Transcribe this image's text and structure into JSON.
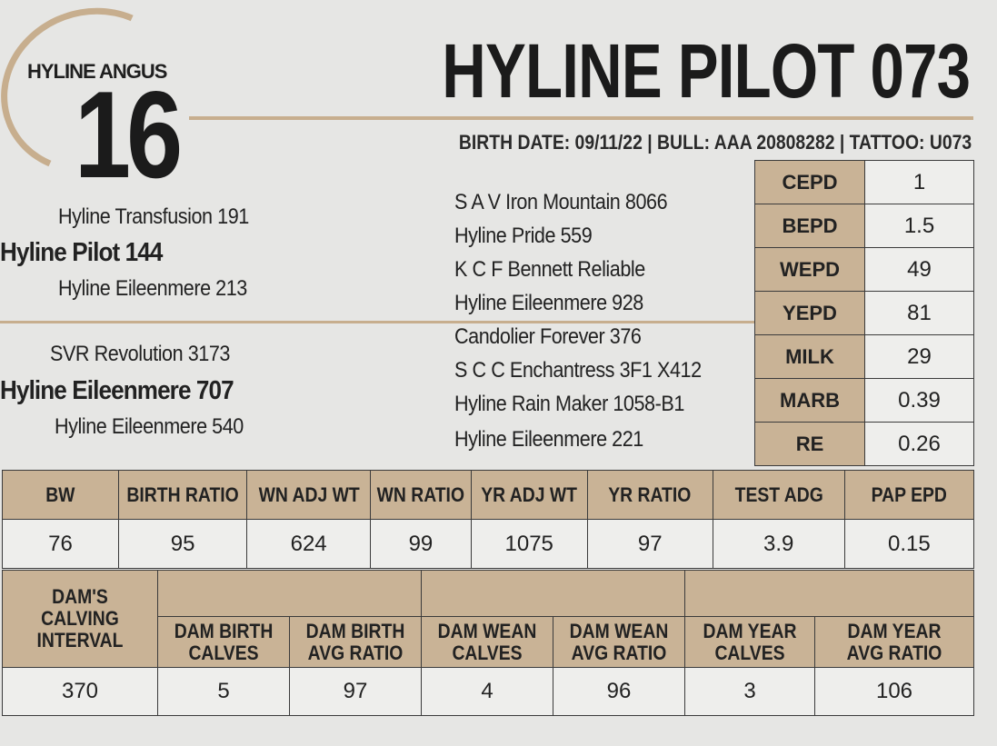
{
  "header": {
    "brand": "HYLINE ANGUS",
    "lot_number": "16",
    "title": "HYLINE PILOT 073",
    "info_line": "BIRTH DATE: 09/11/22 | BULL:  AAA 20808282 | TATTOO: U073"
  },
  "pedigree": {
    "sire_sire": "Hyline Transfusion 191",
    "sire": "Hyline Pilot 144",
    "sire_dam": "Hyline Eileenmere 213",
    "dam_sire": "SVR Revolution 3173",
    "dam": "Hyline Eileenmere 707",
    "dam_dam": "Hyline Eileenmere 540",
    "third_generation": [
      "S A V Iron Mountain 8066",
      "Hyline Pride 559",
      "K C F Bennett Reliable",
      "Hyline Eileenmere 928",
      "Candolier Forever 376",
      "S C C Enchantress 3F1 X412",
      "Hyline Rain Maker 1058-B1",
      "Hyline Eileenmere 221"
    ]
  },
  "epds": [
    {
      "label": "CEPD",
      "value": "1"
    },
    {
      "label": "BEPD",
      "value": "1.5"
    },
    {
      "label": "WEPD",
      "value": "49"
    },
    {
      "label": "YEPD",
      "value": "81"
    },
    {
      "label": "MILK",
      "value": "29"
    },
    {
      "label": "MARB",
      "value": "0.39"
    },
    {
      "label": "RE",
      "value": "0.26"
    }
  ],
  "performance": {
    "headers": [
      "BW",
      "BIRTH RATIO",
      "WN ADJ WT",
      "WN RATIO",
      "YR ADJ WT",
      "YR RATIO",
      "TEST ADG",
      "PAP EPD"
    ],
    "values": [
      "76",
      "95",
      "624",
      "99",
      "1075",
      "97",
      "3.9",
      "0.15"
    ]
  },
  "dam_record": {
    "calving_interval_label": "DAM'S CALVING INTERVAL",
    "headers": [
      "DAM BIRTH CALVES",
      "DAM BIRTH AVG RATIO",
      "DAM WEAN CALVES",
      "DAM WEAN AVG RATIO",
      "DAM YEAR CALVES",
      "DAM YEAR AVG RATIO"
    ],
    "calving_interval": "370",
    "values": [
      "5",
      "97",
      "4",
      "96",
      "3",
      "106"
    ]
  },
  "colors": {
    "accent": "#c9b396",
    "background": "#e6e6e4",
    "rule": "#c7ae8e"
  }
}
